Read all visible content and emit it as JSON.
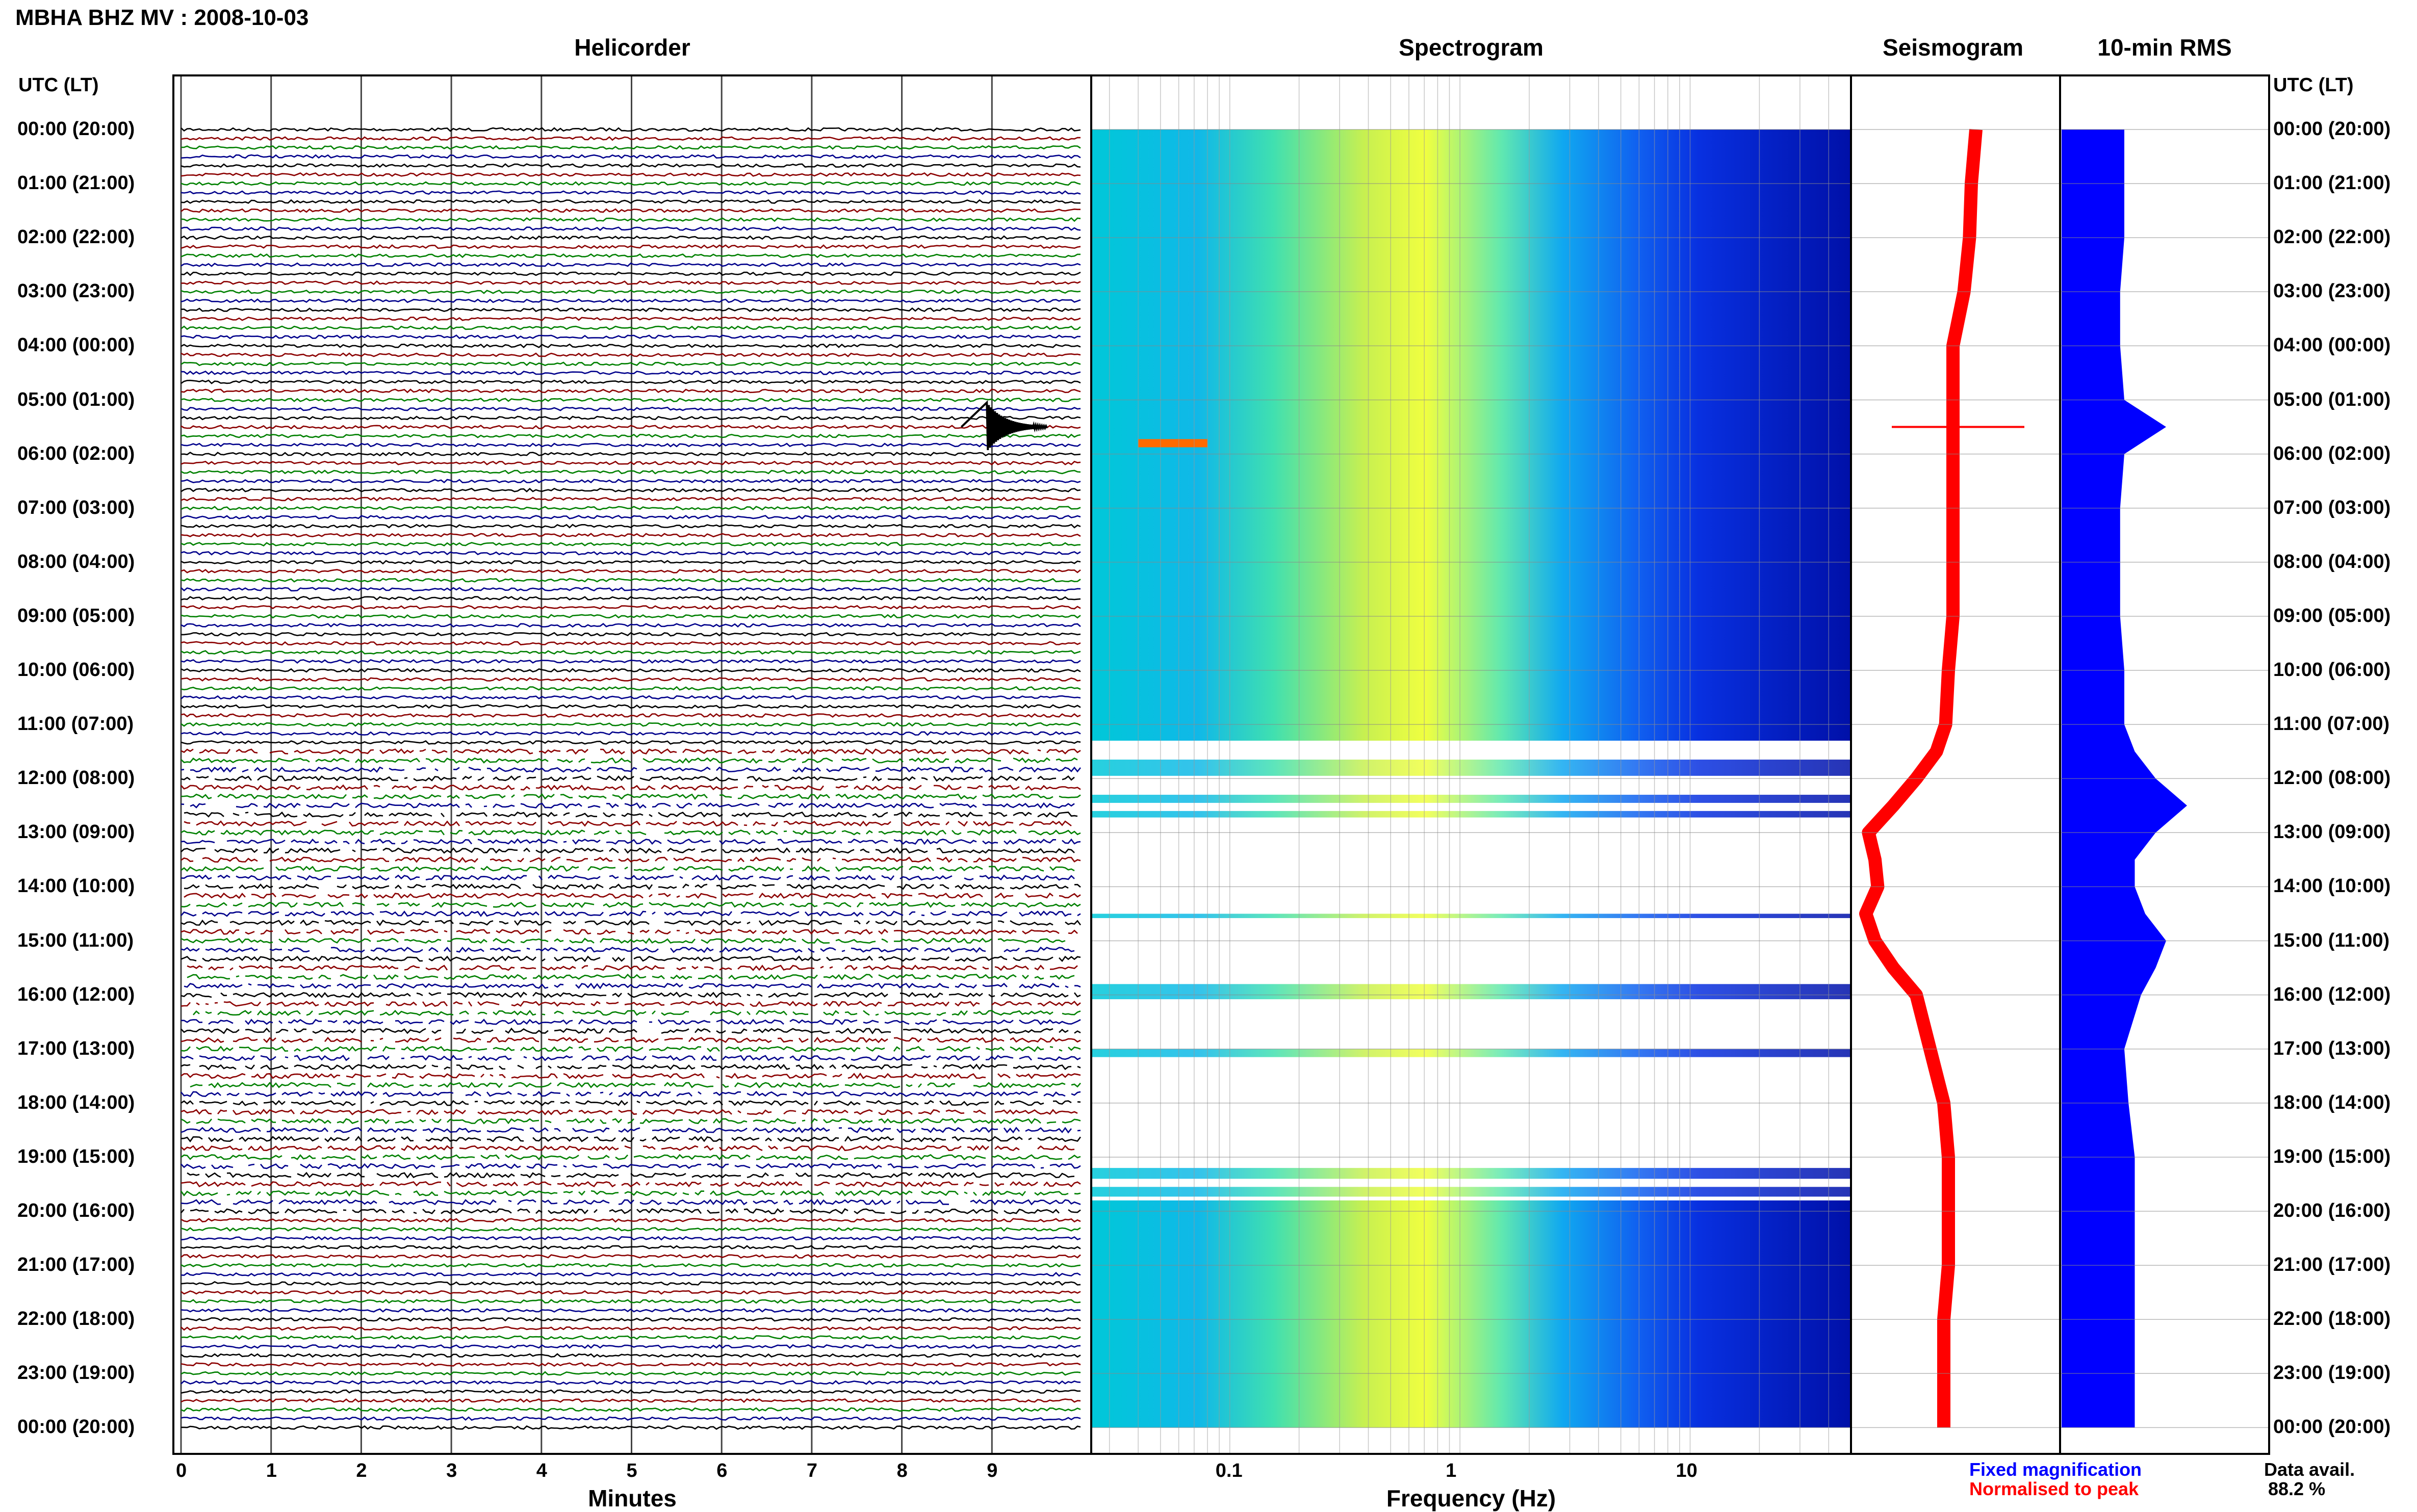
{
  "header": {
    "title": "MBHA BHZ MV : 2008-10-03",
    "panels": {
      "helicorder": "Helicorder",
      "spectrogram": "Spectrogram",
      "seismogram": "Seismogram",
      "rms": "10-min RMS"
    },
    "left_axis_label": "UTC (LT)",
    "right_axis_label": "UTC (LT)"
  },
  "time_labels": [
    "00:00 (20:00)",
    "01:00 (21:00)",
    "02:00 (22:00)",
    "03:00 (23:00)",
    "04:00 (00:00)",
    "05:00 (01:00)",
    "06:00 (02:00)",
    "07:00 (03:00)",
    "08:00 (04:00)",
    "09:00 (05:00)",
    "10:00 (06:00)",
    "11:00 (07:00)",
    "12:00 (08:00)",
    "13:00 (09:00)",
    "14:00 (10:00)",
    "15:00 (11:00)",
    "16:00 (12:00)",
    "17:00 (13:00)",
    "18:00 (14:00)",
    "19:00 (15:00)",
    "20:00 (16:00)",
    "21:00 (17:00)",
    "22:00 (18:00)",
    "23:00 (19:00)",
    "00:00 (20:00)"
  ],
  "legend": {
    "fixed": "Fixed magnification",
    "normalised": "Normalised to peak",
    "fixed_color": "#0000ff",
    "normalised_color": "#ff0000"
  },
  "data_avail": {
    "label": "Data avail.",
    "value": "88.2 %"
  },
  "colors": {
    "trace_cycle": [
      "#000000",
      "#8b0000",
      "#008000",
      "#00008b"
    ],
    "rms_bar": "#0000ff",
    "seismo": "#ff0000"
  },
  "chart_data": [
    {
      "type": "line",
      "title": "Helicorder",
      "xlabel": "Minutes",
      "x_ticks": [
        "0",
        "1",
        "2",
        "3",
        "4",
        "5",
        "6",
        "7",
        "8",
        "9"
      ],
      "xlim": [
        0,
        10
      ],
      "rows_per_hour": 6,
      "hours": 24,
      "gaps_hours": [
        11.5,
        20
      ],
      "event": {
        "hour": 5.5,
        "minute": 9.0
      }
    },
    {
      "type": "heatmap",
      "title": "Spectrogram",
      "xlabel": "Frequency (Hz)",
      "x_scale": "log",
      "x_ticks": [
        "0.1",
        "1",
        "10"
      ],
      "xlim": [
        0.025,
        50
      ],
      "colormap": [
        "#00008b",
        "#0000ff",
        "#00bfff",
        "#00ffcc",
        "#ffff00"
      ],
      "gap_hours": [
        11.3,
        19.8
      ]
    },
    {
      "type": "line",
      "title": "Seismogram",
      "series": [
        {
          "name": "Normalised to peak",
          "hours": [
            0,
            1,
            2,
            3,
            4,
            5,
            5.5,
            6,
            7,
            8,
            9,
            10,
            11,
            11.5,
            12,
            12.5,
            13,
            13.5,
            14,
            14.5,
            15,
            15.5,
            16,
            17,
            18,
            19,
            20,
            21,
            22,
            23,
            24
          ],
          "values": [
            0.25,
            0.2,
            0.18,
            0.12,
            0.0,
            0.0,
            0.0,
            0.0,
            0.0,
            0.0,
            0.0,
            -0.05,
            -0.08,
            -0.18,
            -0.4,
            -0.65,
            -0.92,
            -0.85,
            -0.82,
            -0.95,
            -0.85,
            -0.65,
            -0.4,
            -0.25,
            -0.1,
            -0.05,
            -0.05,
            -0.05,
            -0.1,
            -0.1,
            -0.1
          ]
        }
      ]
    },
    {
      "type": "bar",
      "title": "10-min RMS",
      "hours": [
        0,
        1,
        2,
        3,
        4,
        5,
        5.5,
        6,
        7,
        8,
        9,
        10,
        11,
        11.5,
        12,
        12.5,
        13,
        13.5,
        14,
        14.5,
        15,
        15.5,
        16,
        17,
        18,
        19,
        20,
        21,
        22,
        23,
        24
      ],
      "values": [
        0.3,
        0.3,
        0.3,
        0.28,
        0.28,
        0.3,
        0.5,
        0.3,
        0.28,
        0.28,
        0.28,
        0.3,
        0.3,
        0.35,
        0.45,
        0.6,
        0.45,
        0.35,
        0.35,
        0.4,
        0.5,
        0.45,
        0.38,
        0.3,
        0.32,
        0.35,
        0.35,
        0.35,
        0.35,
        0.35,
        0.35
      ]
    }
  ]
}
